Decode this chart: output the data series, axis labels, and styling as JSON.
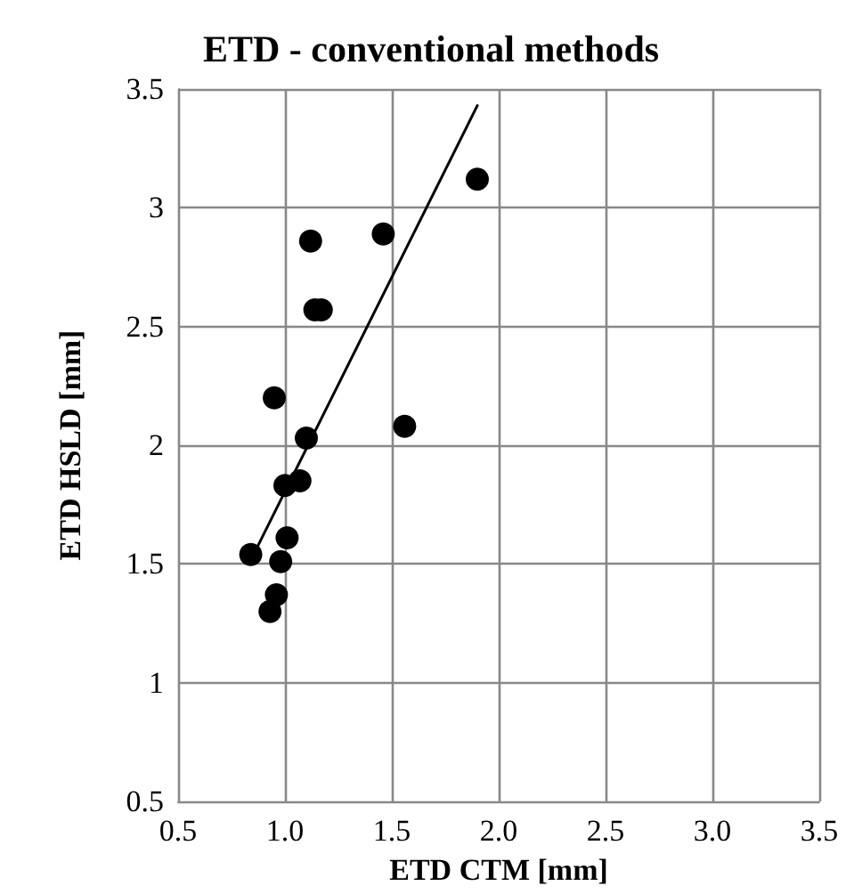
{
  "chart_data": {
    "type": "scatter",
    "title": "ETD - conventional methods",
    "xlabel": "ETD CTM [mm]",
    "ylabel": "ETD HSLD [mm]",
    "xlim": [
      0.5,
      3.5
    ],
    "xticks": [
      {
        "value": 0.5,
        "label": "0.5"
      },
      {
        "value": 1,
        "label": "1.0"
      },
      {
        "value": 1.5,
        "label": "1.5"
      },
      {
        "value": 2,
        "label": "2.0"
      },
      {
        "value": 2.5,
        "label": "2.5"
      },
      {
        "value": 3,
        "label": "3.0"
      },
      {
        "value": 3.5,
        "label": "3.5"
      }
    ],
    "ylim": [
      0.5,
      3.5
    ],
    "yticks": [
      0.5,
      1,
      1.5,
      2,
      2.5,
      3,
      3.5
    ],
    "grid": true,
    "series": [
      {
        "marker": "circle",
        "color": "#000000",
        "x": [
          1.9,
          1.12,
          1.46,
          1.14,
          1.17,
          0.95,
          1.56,
          1.1,
          1.0,
          1.07,
          1.01,
          0.84,
          0.98,
          0.96,
          0.93
        ],
        "values": [
          3.12,
          2.86,
          2.89,
          2.57,
          2.57,
          2.2,
          2.08,
          2.03,
          1.83,
          1.85,
          1.61,
          1.54,
          1.51,
          1.37,
          1.3
        ]
      },
      {
        "type": "line",
        "marker": "none",
        "color": "#000000",
        "x": [
          0.87,
          1.9
        ],
        "values": [
          1.57,
          3.43
        ]
      }
    ]
  }
}
